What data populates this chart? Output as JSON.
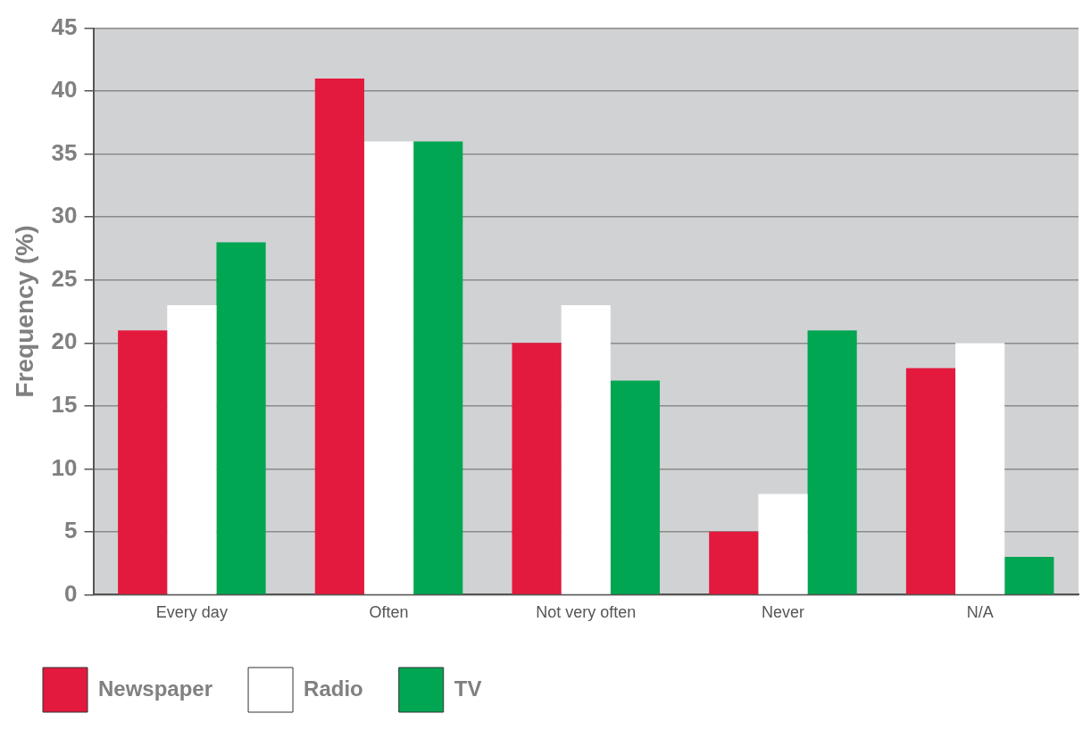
{
  "chart_data": {
    "type": "bar",
    "ylabel": "Frequency (%)",
    "categories": [
      "Every day",
      "Often",
      "Not very often",
      "Never",
      "N/A"
    ],
    "series": [
      {
        "name": "Newspaper",
        "color": "#e31a3e",
        "values": [
          21,
          41,
          20,
          5,
          18
        ]
      },
      {
        "name": "Radio",
        "color": "#ffffff",
        "values": [
          23,
          36,
          23,
          8,
          20
        ]
      },
      {
        "name": "TV",
        "color": "#00a651",
        "values": [
          28,
          36,
          17,
          21,
          3
        ]
      }
    ],
    "ylim": [
      0,
      45
    ],
    "yticks": [
      0,
      5,
      10,
      15,
      20,
      25,
      30,
      35,
      40,
      45
    ],
    "grid": "y",
    "legend": "bottom"
  }
}
